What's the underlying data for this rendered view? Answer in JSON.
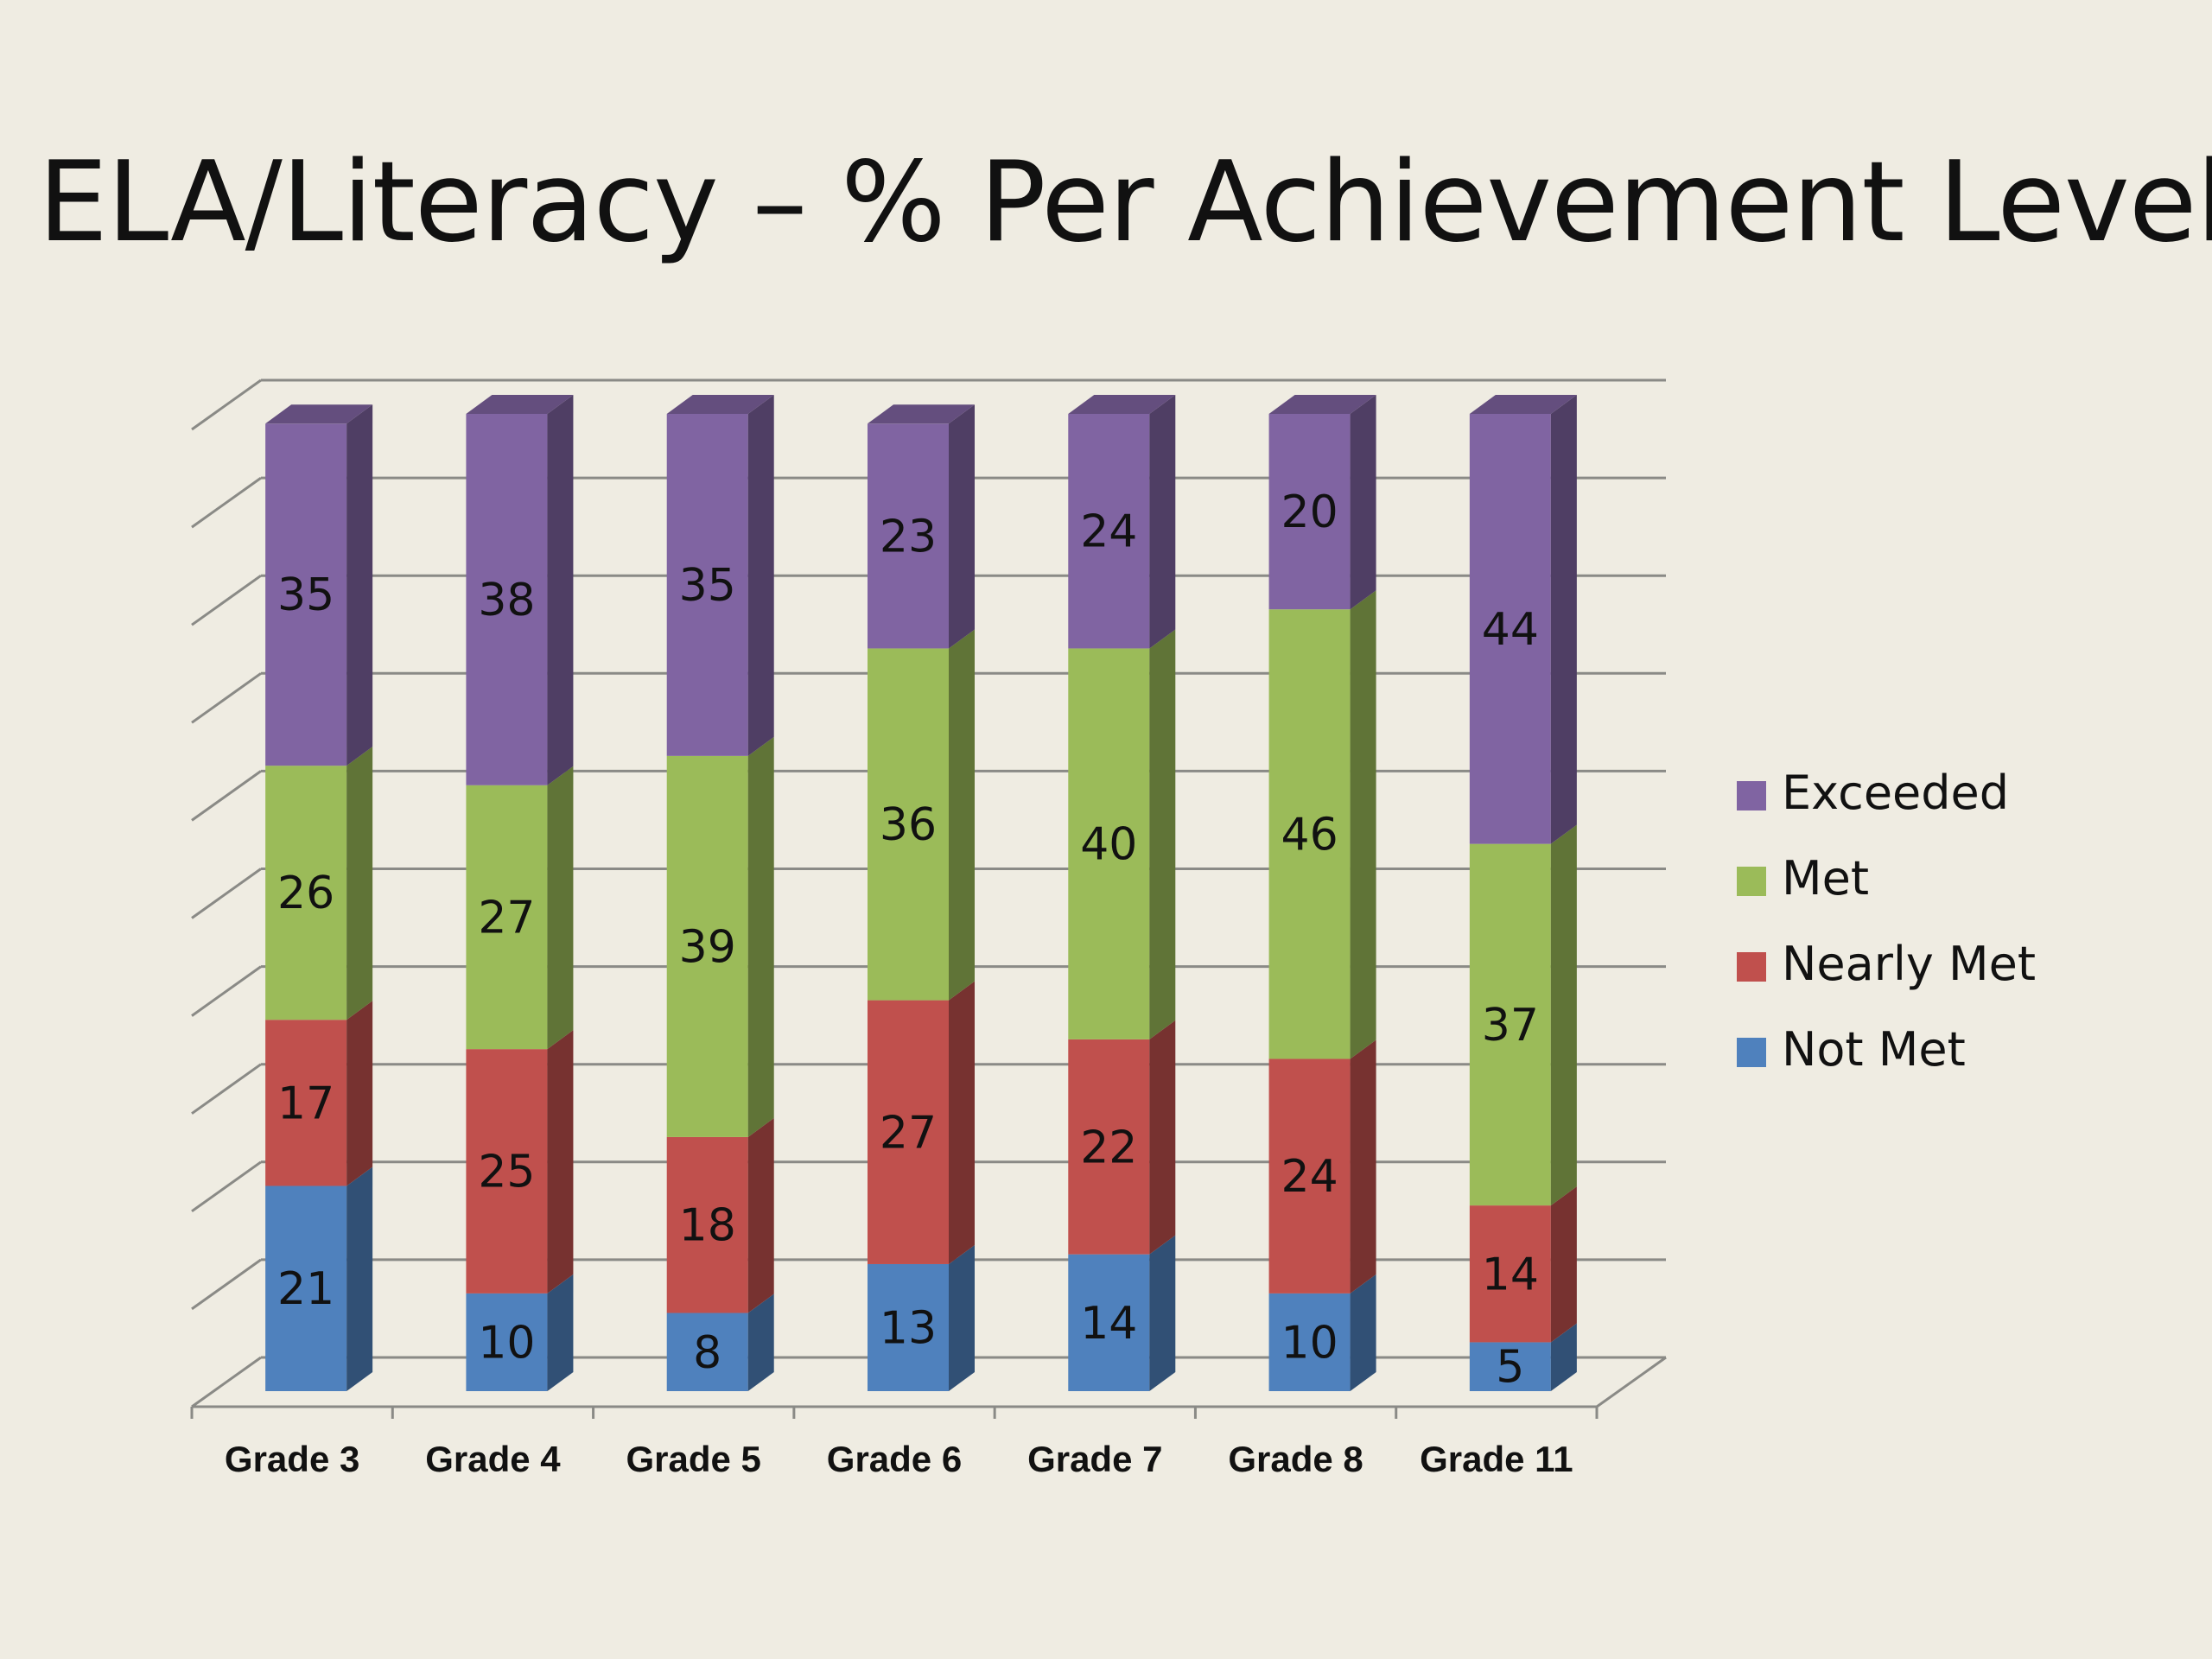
{
  "slide": {
    "title": "ELA/Literacy – % Per Achievement Level"
  },
  "chart_data": {
    "type": "bar",
    "stacked": true,
    "three_d": true,
    "categories": [
      "Grade 3",
      "Grade 4",
      "Grade 5",
      "Grade 6",
      "Grade 7",
      "Grade 8",
      "Grade 11"
    ],
    "series": [
      {
        "name": "Not Met",
        "color": "#4f81bd",
        "values": [
          21,
          10,
          8,
          13,
          14,
          10,
          5
        ]
      },
      {
        "name": "Nearly Met",
        "color": "#c0504d",
        "values": [
          17,
          25,
          18,
          27,
          22,
          24,
          14
        ]
      },
      {
        "name": "Met",
        "color": "#9bbb59",
        "values": [
          26,
          27,
          39,
          36,
          40,
          46,
          37
        ]
      },
      {
        "name": "Exceeded",
        "color": "#8064a2",
        "values": [
          35,
          38,
          35,
          23,
          24,
          20,
          44
        ]
      }
    ],
    "ylim": [
      0,
      100
    ],
    "gridlines": true,
    "axis_tick_labels_y": false,
    "data_labels": true,
    "legend_position": "right"
  }
}
